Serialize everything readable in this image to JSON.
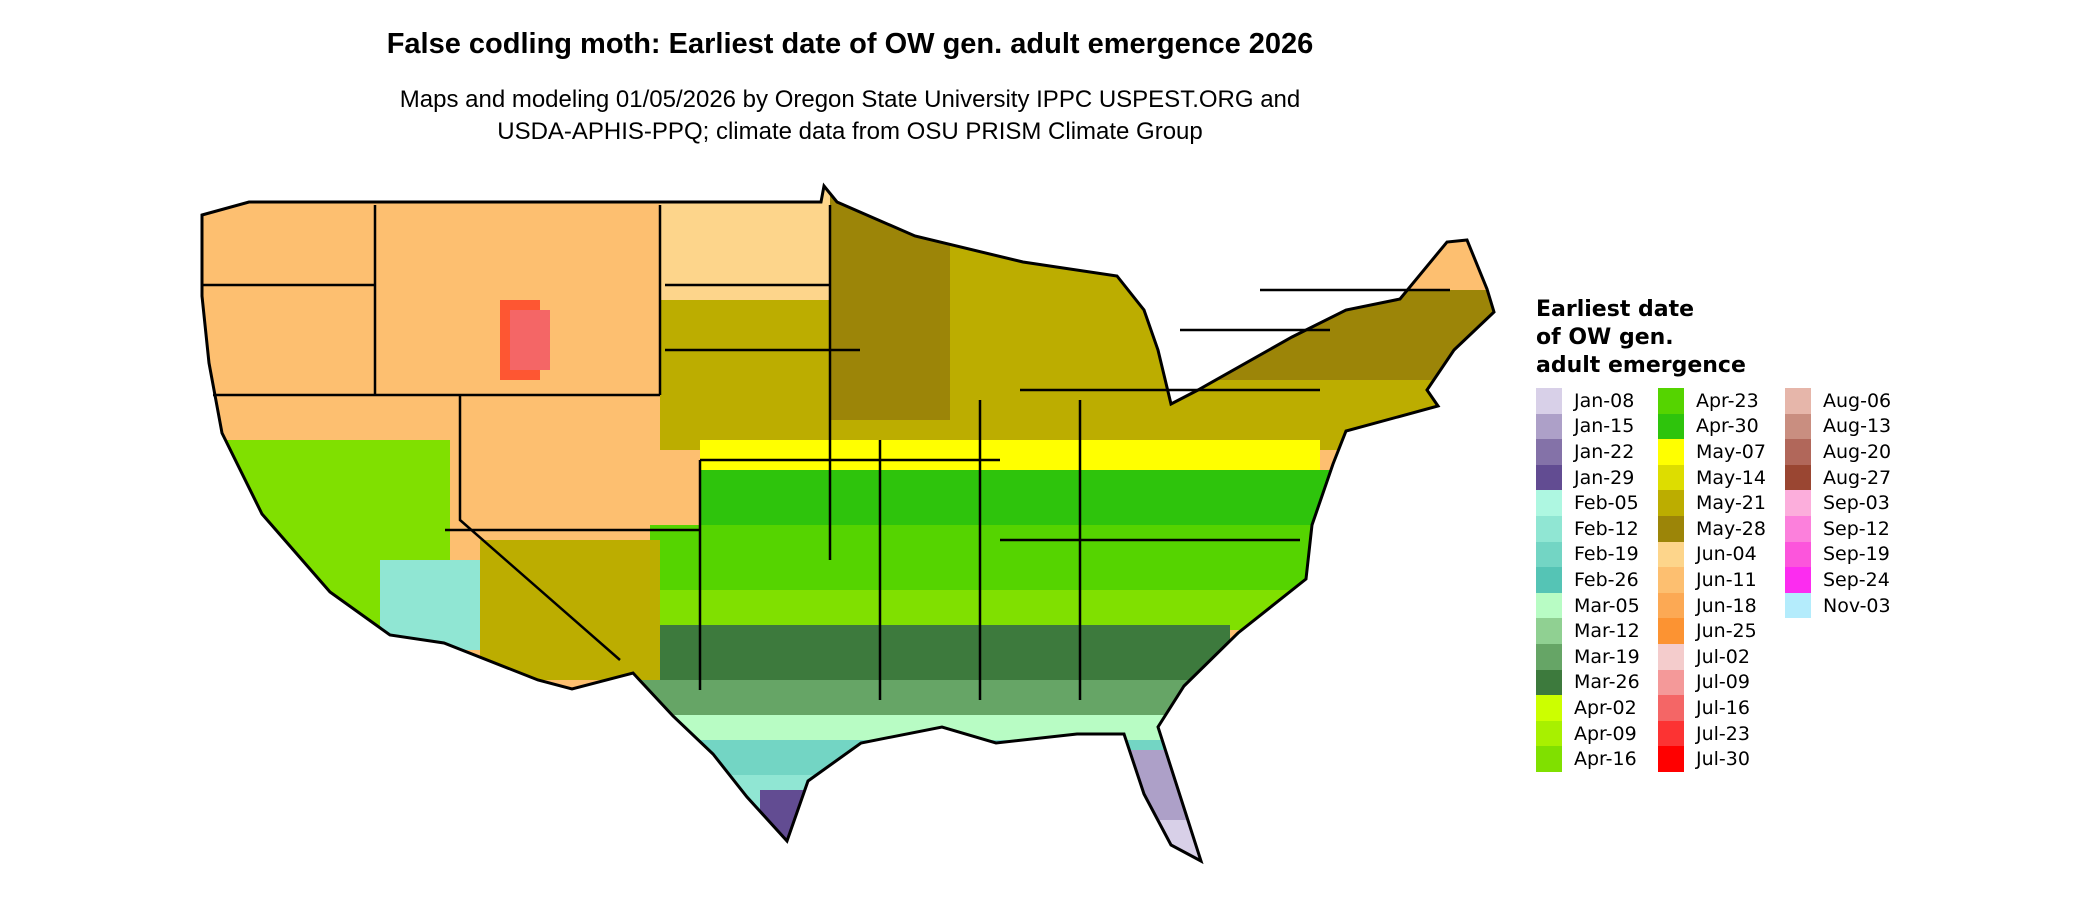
{
  "title": "False codling moth: Earliest date of OW gen. adult emergence 2026",
  "subtitle_line1": "Maps and modeling 01/05/2026 by Oregon State University IPPC USPEST.ORG and",
  "subtitle_line2": "USDA-APHIS-PPQ; climate data from OSU PRISM Climate Group",
  "legend": {
    "title_lines": [
      "Earliest date",
      "of OW gen.",
      "adult emergence"
    ],
    "columns": [
      [
        {
          "label": "Jan-08",
          "color": "#d8d0e8"
        },
        {
          "label": "Jan-15",
          "color": "#ada0c8"
        },
        {
          "label": "Jan-22",
          "color": "#8472a8"
        },
        {
          "label": "Jan-29",
          "color": "#624c92"
        },
        {
          "label": "Feb-05",
          "color": "#aef7e1"
        },
        {
          "label": "Feb-12",
          "color": "#90e6d3"
        },
        {
          "label": "Feb-19",
          "color": "#73d5c4"
        },
        {
          "label": "Feb-26",
          "color": "#55c4b5"
        },
        {
          "label": "Mar-05",
          "color": "#b8fcc4"
        },
        {
          "label": "Mar-12",
          "color": "#90d092"
        },
        {
          "label": "Mar-19",
          "color": "#66a566"
        },
        {
          "label": "Mar-26",
          "color": "#3d7a3d"
        },
        {
          "label": "Apr-02",
          "color": "#ccff00"
        },
        {
          "label": "Apr-09",
          "color": "#a8f000"
        },
        {
          "label": "Apr-16",
          "color": "#80e000"
        }
      ],
      [
        {
          "label": "Apr-23",
          "color": "#55d400"
        },
        {
          "label": "Apr-30",
          "color": "#2ec40c"
        },
        {
          "label": "May-07",
          "color": "#ffff00"
        },
        {
          "label": "May-14",
          "color": "#dddd00"
        },
        {
          "label": "May-21",
          "color": "#bcad00"
        },
        {
          "label": "May-28",
          "color": "#9c8508"
        },
        {
          "label": "Jun-04",
          "color": "#fdd58b"
        },
        {
          "label": "Jun-11",
          "color": "#fdbf70"
        },
        {
          "label": "Jun-18",
          "color": "#fca954"
        },
        {
          "label": "Jun-25",
          "color": "#fc9332"
        },
        {
          "label": "Jul-02",
          "color": "#f4cccc"
        },
        {
          "label": "Jul-09",
          "color": "#f49999"
        },
        {
          "label": "Jul-16",
          "color": "#f46666"
        },
        {
          "label": "Jul-23",
          "color": "#fc3333"
        },
        {
          "label": "Jul-30",
          "color": "#ff0000"
        }
      ],
      [
        {
          "label": "Aug-06",
          "color": "#e6b6aa"
        },
        {
          "label": "Aug-13",
          "color": "#c98e80"
        },
        {
          "label": "Aug-20",
          "color": "#b1675a"
        },
        {
          "label": "Aug-27",
          "color": "#9a4632"
        },
        {
          "label": "Sep-03",
          "color": "#fcaedc"
        },
        {
          "label": "Sep-12",
          "color": "#fc80dc"
        },
        {
          "label": "Sep-19",
          "color": "#fc55dc"
        },
        {
          "label": "Sep-24",
          "color": "#fc2cf0"
        },
        {
          "label": "Nov-03",
          "color": "#b4ecfc"
        }
      ]
    ]
  }
}
